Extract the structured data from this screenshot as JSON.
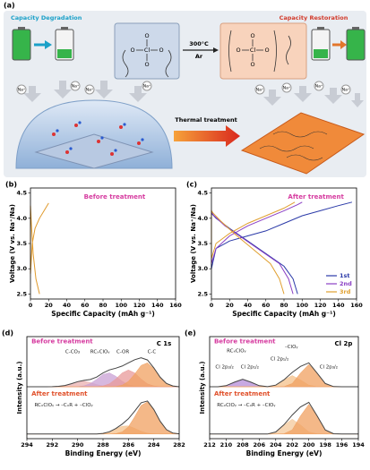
{
  "schematic": {
    "panel": "(a)",
    "left_title": "Capacity Degradation",
    "right_title": "Capacity Restoration",
    "condition_temp": "300°C",
    "condition_gas": "Ar",
    "arrow_label": "Thermal treatment",
    "ions": [
      "Na⁺",
      "Na⁺",
      "Na⁺",
      "Na⁺",
      "Na⁺",
      "Na⁺",
      "Na⁺",
      "Na⁺"
    ],
    "left_atoms": [
      "O",
      "O",
      "Cl",
      "O",
      "O"
    ],
    "right_atoms": [
      "O",
      "O",
      "Cl",
      "O",
      "O"
    ]
  },
  "chart_data": [
    {
      "type": "line",
      "panel": "(b)",
      "xlabel": "Specific Capacity (mAh g⁻¹)",
      "ylabel": "Voltage (V vs. Na⁺/Na)",
      "annotations": [
        "Before treatment"
      ],
      "xlim": [
        0,
        160
      ],
      "xticks": [
        0,
        20,
        40,
        60,
        80,
        100,
        120,
        140,
        160
      ],
      "ylim": [
        2.4,
        4.6
      ],
      "yticks": [
        {
          "value": 2.5,
          "label": "2.5"
        },
        {
          "value": 3,
          "label": "3.0"
        },
        {
          "value": 3.5,
          "label": "3.5"
        },
        {
          "value": 4,
          "label": "4.0"
        },
        {
          "value": 4.5,
          "label": "4.5"
        }
      ],
      "series": [
        {
          "color": "#e09a2c",
          "x": [
            10,
            6,
            3,
            1,
            0,
            0,
            2,
            5,
            10,
            15,
            20
          ],
          "values": [
            2.5,
            2.8,
            3.3,
            3.9,
            4.25,
            2.9,
            3.5,
            3.8,
            4.0,
            4.15,
            4.3
          ]
        }
      ]
    },
    {
      "type": "line",
      "panel": "(c)",
      "xlabel": "Specific Capacity (mAh g⁻¹)",
      "ylabel": "Voltage (V vs. Na⁺/Na)",
      "annotations": [
        "After treatment"
      ],
      "legend": "lower right",
      "xlim": [
        0,
        160
      ],
      "xticks": [
        0,
        20,
        40,
        60,
        80,
        100,
        120,
        140,
        160
      ],
      "ylim": [
        2.4,
        4.6
      ],
      "yticks": [
        {
          "value": 2.5,
          "label": "2.5"
        },
        {
          "value": 3,
          "label": "3.0"
        },
        {
          "value": 3.5,
          "label": "3.5"
        },
        {
          "value": 4,
          "label": "4.0"
        },
        {
          "value": 4.5,
          "label": "4.5"
        }
      ],
      "series": [
        {
          "name": "1st",
          "color": "#2b3aa8",
          "x": [
            95,
            90,
            80,
            60,
            40,
            20,
            5,
            0,
            0,
            5,
            20,
            40,
            60,
            80,
            100,
            120,
            140,
            155
          ],
          "values": [
            2.5,
            2.8,
            3.05,
            3.3,
            3.55,
            3.8,
            4.0,
            4.1,
            3.0,
            3.4,
            3.55,
            3.65,
            3.75,
            3.9,
            4.05,
            4.15,
            4.25,
            4.32
          ]
        },
        {
          "name": "2nd",
          "color": "#8a3fc4",
          "x": [
            90,
            85,
            75,
            55,
            35,
            15,
            3,
            0,
            0,
            5,
            20,
            40,
            60,
            80,
            95,
            100
          ],
          "values": [
            2.5,
            2.8,
            3.1,
            3.35,
            3.6,
            3.85,
            4.05,
            4.12,
            3.1,
            3.4,
            3.65,
            3.85,
            4.0,
            4.15,
            4.27,
            4.32
          ]
        },
        {
          "name": "3rd",
          "color": "#e0a030",
          "x": [
            80,
            75,
            65,
            45,
            25,
            10,
            2,
            0,
            0,
            5,
            20,
            40,
            60,
            80,
            90,
            92
          ],
          "values": [
            2.5,
            2.8,
            3.1,
            3.4,
            3.7,
            3.95,
            4.1,
            4.15,
            3.2,
            3.5,
            3.7,
            3.9,
            4.05,
            4.2,
            4.3,
            4.32
          ]
        }
      ]
    },
    {
      "type": "line",
      "panel": "(d)",
      "xlabel": "Binding Energy (eV)",
      "ylabel": "Intensity (a.u.)",
      "annotations": [
        "C 1s",
        "Before treatment",
        "C-CO₃",
        "RCₓClOᵧ",
        "C-OR",
        "C-C",
        "After treatment",
        "RCₓClOᵧ → –CₓR + –ClOᵧ"
      ],
      "xlim": [
        294,
        282
      ],
      "xticks": [
        294,
        292,
        290,
        288,
        286,
        284,
        282
      ],
      "ylim": [
        0,
        11
      ],
      "x": [
        294,
        293.5,
        293,
        292.5,
        292,
        291.5,
        291,
        290.5,
        290,
        289.5,
        289,
        288.5,
        288,
        287.5,
        287,
        286.5,
        286,
        285.5,
        285,
        284.5,
        284,
        283.5,
        283,
        282.5,
        282
      ],
      "series": [
        {
          "color": "#eab0b0",
          "fill": true,
          "values": [
            5.6,
            5.6,
            5.6,
            5.6,
            5.61,
            5.64,
            5.73,
            5.92,
            6.13,
            6.19,
            6.05,
            5.83,
            5.68,
            5.62,
            5.6,
            5.6,
            5.6,
            5.6,
            5.6,
            5.6,
            5.6,
            5.6,
            5.6,
            5.6,
            5.6
          ]
        },
        {
          "color": "#c9a0d4",
          "fill": true,
          "values": [
            5.6,
            5.6,
            5.6,
            5.6,
            5.6,
            5.6,
            5.6,
            5.6,
            5.62,
            5.69,
            5.93,
            6.4,
            6.92,
            7.09,
            6.73,
            6.19,
            5.8,
            5.65,
            5.61,
            5.6,
            5.6,
            5.6,
            5.6,
            5.6,
            5.6
          ]
        },
        {
          "color": "#e89a9a",
          "fill": true,
          "values": [
            5.6,
            5.6,
            5.6,
            5.6,
            5.6,
            5.6,
            5.6,
            5.6,
            5.6,
            5.6,
            5.6,
            5.61,
            5.68,
            5.91,
            6.43,
            7.08,
            7.4,
            7.08,
            6.43,
            5.91,
            5.68,
            5.61,
            5.6,
            5.6,
            5.6
          ]
        },
        {
          "color": "#f0a060",
          "fill": true,
          "values": [
            5.6,
            5.6,
            5.6,
            5.6,
            5.6,
            5.6,
            5.6,
            5.6,
            5.6,
            5.6,
            5.6,
            5.6,
            5.6,
            5.6,
            5.63,
            5.76,
            6.17,
            6.98,
            7.89,
            8.17,
            7.55,
            6.61,
            5.95,
            5.68,
            5.61
          ]
        },
        {
          "color": "#444444",
          "values": [
            5.6,
            5.6,
            5.6,
            5.6,
            5.61,
            5.64,
            5.73,
            5.92,
            6.15,
            6.28,
            6.38,
            6.64,
            7.08,
            7.41,
            7.59,
            7.83,
            8.17,
            8.51,
            8.72,
            8.48,
            7.63,
            6.62,
            5.95,
            5.68,
            5.6
          ]
        },
        {
          "color": "#f4c08a",
          "fill": true,
          "values": [
            0.5,
            0.5,
            0.5,
            0.5,
            0.5,
            0.5,
            0.5,
            0.5,
            0.5,
            0.5,
            0.5,
            0.5,
            0.57,
            0.74,
            1.05,
            1.34,
            1.37,
            1.11,
            0.79,
            0.59,
            0.52,
            0.5,
            0.5,
            0.5,
            0.5
          ]
        },
        {
          "color": "#f0a060",
          "fill": true,
          "values": [
            0.5,
            0.5,
            0.5,
            0.5,
            0.5,
            0.5,
            0.5,
            0.5,
            0.5,
            0.5,
            0.5,
            0.5,
            0.5,
            0.5,
            0.54,
            0.72,
            1.27,
            2.36,
            3.58,
            3.97,
            3.13,
            1.87,
            0.97,
            0.61,
            0.52
          ]
        },
        {
          "color": "#444444",
          "values": [
            0.5,
            0.5,
            0.5,
            0.5,
            0.5,
            0.5,
            0.5,
            0.5,
            0.5,
            0.5,
            0.5,
            0.5,
            0.57,
            0.74,
            1.09,
            1.56,
            2.14,
            2.97,
            3.87,
            4.06,
            3.15,
            1.87,
            0.97,
            0.61,
            0.52
          ]
        }
      ]
    },
    {
      "type": "line",
      "panel": "(e)",
      "xlabel": "Binding Energy (eV)",
      "ylabel": "Intensity (a.u.)",
      "annotations": [
        "Cl 2p",
        "Before treatment",
        "RCₓClOᵧ",
        "Cl 2p₃/₂",
        "Cl 2p₁/₂",
        "–ClOᵧ",
        "Cl 2p₁/₂",
        "Cl 2p₃/₂",
        "After treatment",
        "RCₓClOᵧ → –CₓR + –ClOᵧ"
      ],
      "xlim": [
        212,
        194
      ],
      "xticks": [
        212,
        210,
        208,
        206,
        204,
        202,
        200,
        198,
        196,
        194
      ],
      "ylim": [
        0,
        11
      ],
      "x": [
        212,
        211,
        210,
        209,
        208,
        207,
        206,
        205,
        204,
        203,
        202,
        201,
        200,
        199,
        198,
        197,
        196,
        195,
        194
      ],
      "series": [
        {
          "color": "#b48cd8",
          "fill": true,
          "values": [
            5.6,
            5.6,
            5.71,
            6.09,
            6.4,
            6.09,
            5.71,
            5.61,
            5.6,
            5.6,
            5.6,
            5.6,
            5.6,
            5.6,
            5.6,
            5.6,
            5.6,
            5.6,
            5.6
          ]
        },
        {
          "color": "#f4c08a",
          "fill": true,
          "values": [
            5.6,
            5.6,
            5.6,
            5.6,
            5.6,
            5.6,
            5.6,
            5.6,
            5.77,
            6.33,
            6.8,
            6.33,
            5.77,
            5.61,
            5.6,
            5.6,
            5.6,
            5.6,
            5.6
          ]
        },
        {
          "color": "#f0a060",
          "fill": true,
          "values": [
            5.6,
            5.6,
            5.6,
            5.6,
            5.6,
            5.6,
            5.6,
            5.6,
            5.6,
            5.62,
            5.94,
            7.06,
            8.0,
            7.06,
            5.94,
            5.62,
            5.6,
            5.6,
            5.6
          ]
        },
        {
          "color": "#444444",
          "values": [
            5.6,
            5.6,
            5.71,
            6.09,
            6.4,
            6.09,
            5.71,
            5.61,
            5.77,
            6.35,
            7.14,
            7.79,
            8.17,
            7.07,
            5.94,
            5.62,
            5.6,
            5.6,
            5.6
          ]
        },
        {
          "color": "#f4c89a",
          "fill": true,
          "values": [
            0.5,
            0.5,
            0.5,
            0.5,
            0.5,
            0.5,
            0.5,
            0.5,
            0.72,
            1.48,
            2.1,
            1.48,
            0.72,
            0.52,
            0.5,
            0.5,
            0.5,
            0.5,
            0.5
          ]
        },
        {
          "color": "#f0a060",
          "fill": true,
          "values": [
            0.5,
            0.5,
            0.5,
            0.5,
            0.5,
            0.5,
            0.5,
            0.5,
            0.5,
            0.53,
            0.95,
            2.45,
            3.7,
            2.45,
            0.95,
            0.53,
            0.5,
            0.5,
            0.5
          ]
        },
        {
          "color": "#444444",
          "values": [
            0.5,
            0.5,
            0.5,
            0.5,
            0.5,
            0.5,
            0.5,
            0.5,
            0.72,
            1.51,
            2.55,
            3.43,
            3.92,
            2.47,
            0.95,
            0.53,
            0.5,
            0.5,
            0.5
          ]
        }
      ]
    }
  ]
}
